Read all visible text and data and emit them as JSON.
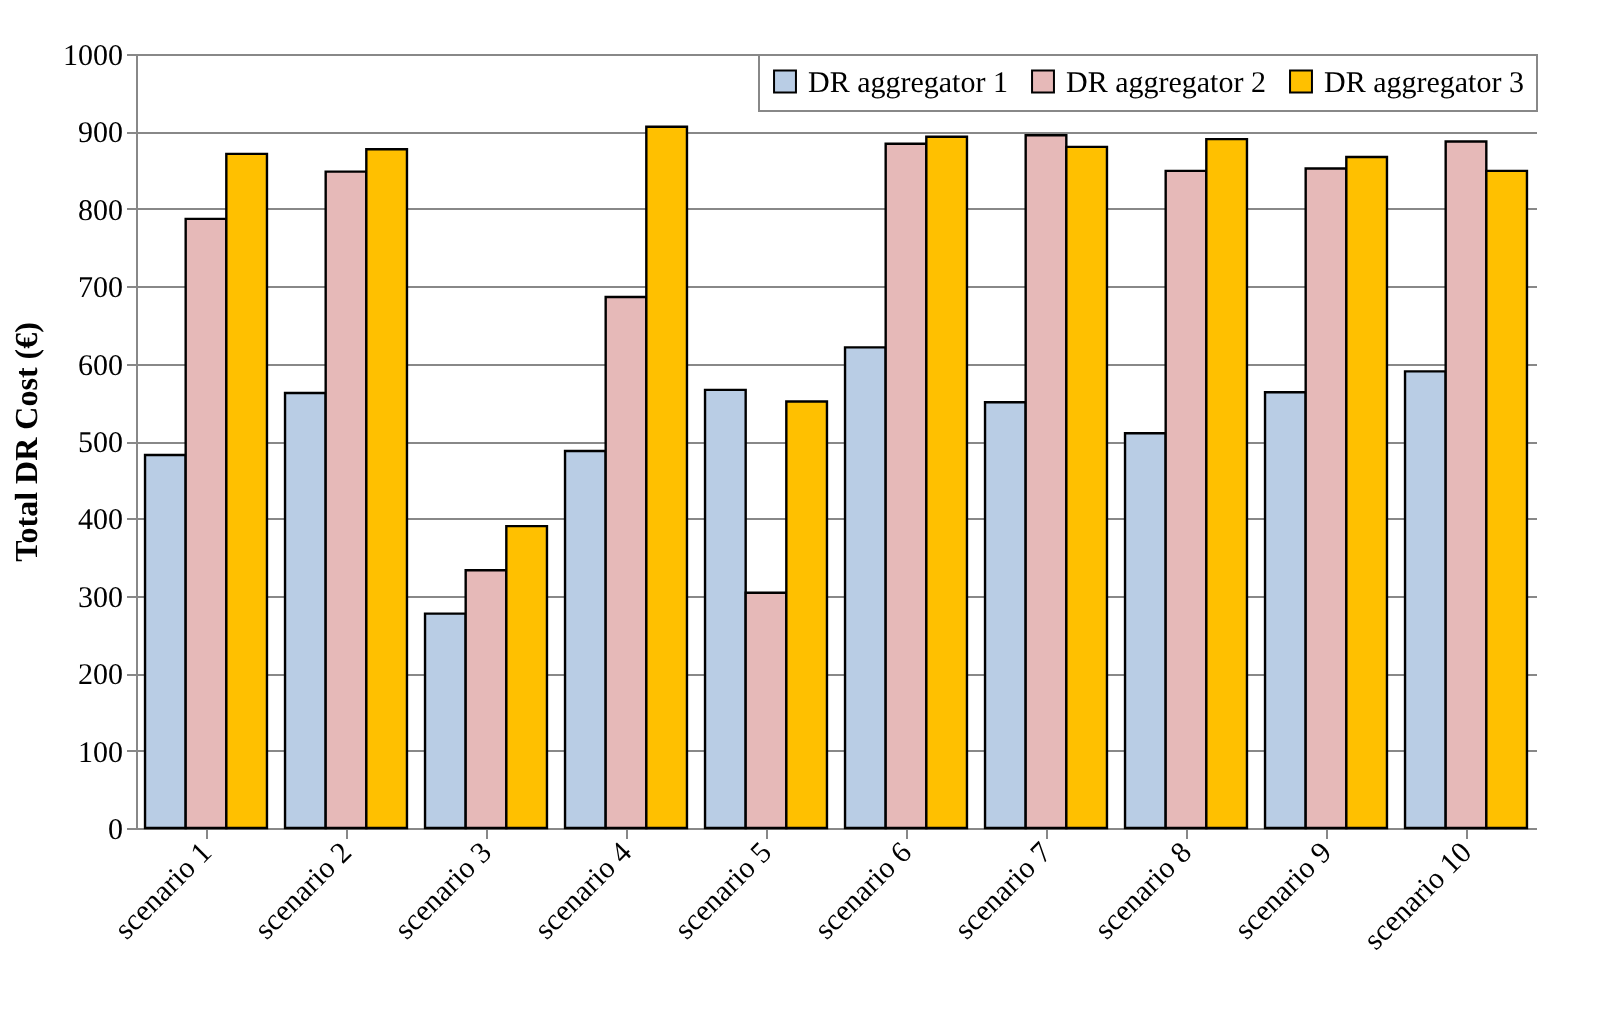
{
  "chart_data": {
    "type": "bar",
    "ylabel": "Total DR Cost (€)",
    "categories": [
      "scenario 1",
      "scenario 2",
      "scenario 3",
      "scenario 4",
      "scenario 5",
      "scenario 6",
      "scenario 7",
      "scenario 8",
      "scenario 9",
      "scenario 10"
    ],
    "series": [
      {
        "name": "DR aggregator 1",
        "color": "#b9cde5",
        "values": [
          482,
          562,
          277,
          487,
          566,
          621,
          550,
          510,
          563,
          590
        ]
      },
      {
        "name": "DR aggregator 2",
        "color": "#e6b9b8",
        "values": [
          787,
          848,
          333,
          686,
          304,
          884,
          895,
          849,
          852,
          887
        ]
      },
      {
        "name": "DR aggregator 3",
        "color": "#ffc000",
        "values": [
          871,
          877,
          390,
          906,
          551,
          893,
          880,
          890,
          867,
          849
        ]
      }
    ],
    "ylim": [
      0,
      1000
    ],
    "yticks": [
      0,
      100,
      200,
      300,
      400,
      500,
      600,
      700,
      800,
      900,
      1000
    ],
    "grid": "y",
    "legend": "top right"
  }
}
